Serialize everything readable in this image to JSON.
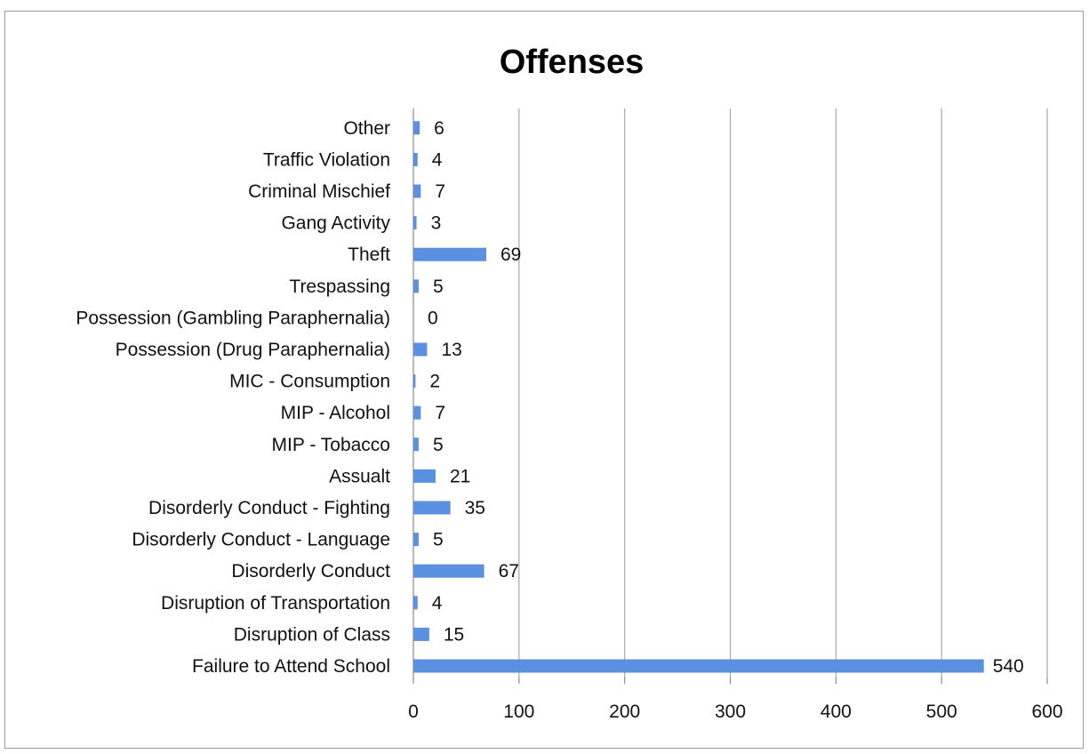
{
  "chart_data": {
    "type": "bar",
    "orientation": "horizontal",
    "title": "Offenses",
    "xlabel": "",
    "ylabel": "",
    "xlim": [
      0,
      600
    ],
    "ticks": [
      0,
      100,
      200,
      300,
      400,
      500,
      600
    ],
    "grid": true,
    "legend": "none",
    "bar_color": "#5b8fe0",
    "categories": [
      "Other",
      "Traffic Violation",
      "Criminal Mischief",
      "Gang Activity",
      "Theft",
      "Trespassing",
      "Possession (Gambling Paraphernalia)",
      "Possession (Drug Paraphernalia)",
      "MIC - Consumption",
      "MIP - Alcohol",
      "MIP - Tobacco",
      "Assualt",
      "Disorderly Conduct - Fighting",
      "Disorderly Conduct - Language",
      "Disorderly Conduct",
      "Disruption of Transportation",
      "Disruption of Class",
      "Failure to Attend School"
    ],
    "values": [
      6,
      4,
      7,
      3,
      69,
      5,
      0,
      13,
      2,
      7,
      5,
      21,
      35,
      5,
      67,
      4,
      15,
      540
    ],
    "data_labels": [
      "6",
      "4",
      "7",
      "3",
      "69",
      "5",
      "0",
      "13",
      "2",
      "7",
      "5",
      "21",
      "35",
      "5",
      "67",
      "4",
      "15",
      "540"
    ]
  }
}
